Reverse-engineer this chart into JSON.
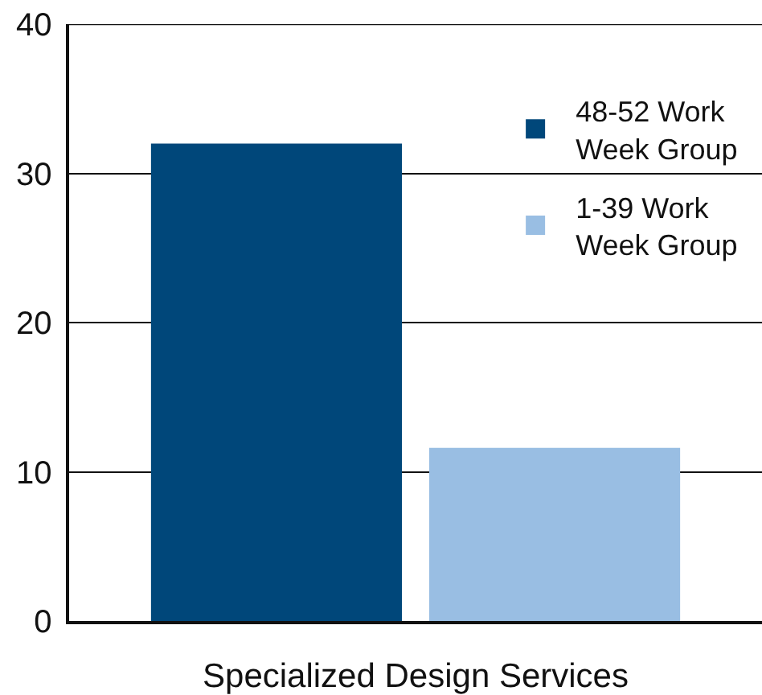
{
  "chart_data": {
    "type": "bar",
    "categories": [
      "Specialized Design Services"
    ],
    "series": [
      {
        "name": "48-52 Work Week Group",
        "color": "#00477a",
        "values": [
          32
        ]
      },
      {
        "name": "1-39 Work Week Group",
        "color": "#99bee3",
        "values": [
          11.6
        ]
      }
    ],
    "ylim": [
      0,
      40
    ],
    "yticks": [
      0,
      10,
      20,
      30,
      40
    ],
    "grid": "y",
    "legend": "top right"
  }
}
